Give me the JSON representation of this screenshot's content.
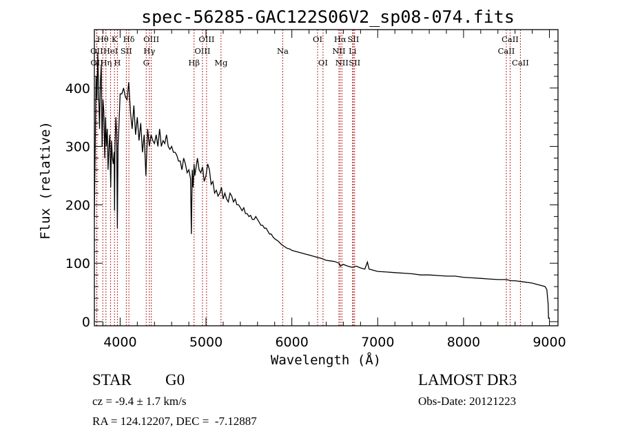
{
  "chart_data": {
    "type": "line",
    "title": "spec-56285-GAC122S06V2_sp08-074.fits",
    "xlabel": "Wavelength (Å)",
    "ylabel": "Flux (relative)",
    "xlim": [
      3700,
      9100
    ],
    "ylim": [
      0,
      500
    ],
    "x_ticks": [
      4000,
      5000,
      6000,
      7000,
      8000,
      9000
    ],
    "x_tick_labels": [
      "4000",
      "5000",
      "6000",
      "7000",
      "8000",
      "9000"
    ],
    "y_ticks": [
      0,
      100,
      200,
      300,
      400
    ],
    "y_tick_labels": [
      "0",
      "100",
      "200",
      "300",
      "400"
    ],
    "grid": false,
    "series": [
      {
        "name": "flux",
        "color": "#000000",
        "x": [
          3700,
          3710,
          3720,
          3730,
          3740,
          3750,
          3760,
          3770,
          3780,
          3790,
          3800,
          3810,
          3820,
          3830,
          3840,
          3850,
          3860,
          3870,
          3880,
          3890,
          3900,
          3910,
          3920,
          3930,
          3935,
          3940,
          3950,
          3960,
          3968,
          3975,
          3985,
          4000,
          4020,
          4040,
          4060,
          4080,
          4100,
          4120,
          4140,
          4160,
          4180,
          4200,
          4220,
          4240,
          4260,
          4280,
          4300,
          4320,
          4340,
          4360,
          4380,
          4400,
          4420,
          4440,
          4460,
          4480,
          4500,
          4520,
          4540,
          4560,
          4580,
          4600,
          4620,
          4640,
          4660,
          4680,
          4700,
          4720,
          4740,
          4760,
          4780,
          4800,
          4820,
          4830,
          4840,
          4850,
          4861,
          4870,
          4880,
          4900,
          4920,
          4940,
          4960,
          4980,
          5000,
          5020,
          5040,
          5060,
          5080,
          5100,
          5120,
          5140,
          5160,
          5180,
          5200,
          5220,
          5240,
          5260,
          5280,
          5300,
          5320,
          5340,
          5360,
          5380,
          5400,
          5420,
          5440,
          5460,
          5480,
          5500,
          5520,
          5540,
          5560,
          5580,
          5600,
          5620,
          5640,
          5660,
          5680,
          5700,
          5720,
          5740,
          5760,
          5780,
          5800,
          5820,
          5840,
          5860,
          5880,
          5900,
          5920,
          5940,
          5960,
          5980,
          6000,
          6050,
          6100,
          6150,
          6200,
          6250,
          6300,
          6350,
          6400,
          6450,
          6500,
          6550,
          6563,
          6600,
          6650,
          6700,
          6750,
          6800,
          6850,
          6880,
          6900,
          6950,
          7000,
          7100,
          7200,
          7300,
          7400,
          7500,
          7600,
          7700,
          7800,
          7900,
          8000,
          8100,
          8200,
          8300,
          8400,
          8500,
          8550,
          8600,
          8700,
          8800,
          8850,
          8900,
          8950,
          8970,
          8985,
          8990
        ],
        "y": [
          180,
          300,
          420,
          380,
          460,
          390,
          330,
          410,
          440,
          300,
          380,
          360,
          280,
          350,
          300,
          330,
          260,
          300,
          320,
          230,
          310,
          280,
          270,
          290,
          190,
          300,
          350,
          320,
          160,
          300,
          330,
          390,
          390,
          400,
          385,
          380,
          410,
          360,
          330,
          370,
          320,
          350,
          310,
          340,
          290,
          320,
          250,
          330,
          300,
          320,
          310,
          305,
          320,
          300,
          330,
          300,
          310,
          305,
          320,
          300,
          295,
          300,
          290,
          290,
          285,
          275,
          275,
          260,
          280,
          270,
          255,
          260,
          245,
          150,
          260,
          230,
          270,
          250,
          260,
          280,
          260,
          255,
          265,
          240,
          250,
          270,
          260,
          235,
          240,
          220,
          225,
          215,
          220,
          230,
          210,
          220,
          210,
          205,
          220,
          215,
          205,
          210,
          200,
          200,
          195,
          190,
          195,
          185,
          185,
          180,
          182,
          175,
          175,
          180,
          175,
          170,
          165,
          165,
          160,
          160,
          155,
          150,
          150,
          145,
          142,
          140,
          138,
          135,
          132,
          130,
          128,
          126,
          125,
          124,
          122,
          120,
          118,
          116,
          114,
          112,
          110,
          108,
          105,
          104,
          103,
          100,
          95,
          98,
          95,
          93,
          95,
          92,
          90,
          102,
          90,
          88,
          86,
          85,
          84,
          83,
          82,
          80,
          80,
          79,
          78,
          78,
          76,
          75,
          74,
          73,
          72,
          72,
          70,
          70,
          68,
          66,
          64,
          62,
          60,
          55,
          30,
          5
        ]
      }
    ],
    "line_markers": [
      {
        "label": "OII",
        "wavelength": 3727,
        "row": 2
      },
      {
        "label": "OII",
        "wavelength": 3729,
        "row": 3
      },
      {
        "label": "Hθ",
        "wavelength": 3798,
        "row": 1
      },
      {
        "label": "Hη",
        "wavelength": 3835,
        "row": 3
      },
      {
        "label": "HeI",
        "wavelength": 3889,
        "row": 2
      },
      {
        "label": "K",
        "wavelength": 3934,
        "row": 1
      },
      {
        "label": "H",
        "wavelength": 3968,
        "row": 3
      },
      {
        "label": "SII",
        "wavelength": 4072,
        "row": 2
      },
      {
        "label": "Hδ",
        "wavelength": 4102,
        "row": 1
      },
      {
        "label": "G",
        "wavelength": 4304,
        "row": 3
      },
      {
        "label": "Hγ",
        "wavelength": 4340,
        "row": 2
      },
      {
        "label": "OIII",
        "wavelength": 4363,
        "row": 1
      },
      {
        "label": "Hβ",
        "wavelength": 4861,
        "row": 3
      },
      {
        "label": "OIII",
        "wavelength": 4959,
        "row": 2
      },
      {
        "label": "OIII",
        "wavelength": 5007,
        "row": 1
      },
      {
        "label": "Mg",
        "wavelength": 5175,
        "row": 3
      },
      {
        "label": "Na",
        "wavelength": 5894,
        "row": 2
      },
      {
        "label": "OI",
        "wavelength": 6300,
        "row": 1
      },
      {
        "label": "OI",
        "wavelength": 6363,
        "row": 3
      },
      {
        "label": "NII",
        "wavelength": 6548,
        "row": 2
      },
      {
        "label": "Hα",
        "wavelength": 6563,
        "row": 1
      },
      {
        "label": "NII",
        "wavelength": 6583,
        "row": 3
      },
      {
        "label": "Li",
        "wavelength": 6707,
        "row": 2
      },
      {
        "label": "SII",
        "wavelength": 6716,
        "row": 1
      },
      {
        "label": "SII",
        "wavelength": 6731,
        "row": 3
      },
      {
        "label": "CaII",
        "wavelength": 8498,
        "row": 2
      },
      {
        "label": "CaII",
        "wavelength": 8542,
        "row": 1
      },
      {
        "label": "CaII",
        "wavelength": 8662,
        "row": 3
      }
    ],
    "marker_color": "#b22222"
  },
  "info": {
    "object_class": "STAR",
    "subclass": "G0",
    "survey": "LAMOST DR3",
    "redshift": "cz = -9.4 ± 1.7 km/s",
    "obs_date": "Obs-Date: 20121223",
    "coords": "RA = 124.12207, DEC =  -7.12887"
  }
}
